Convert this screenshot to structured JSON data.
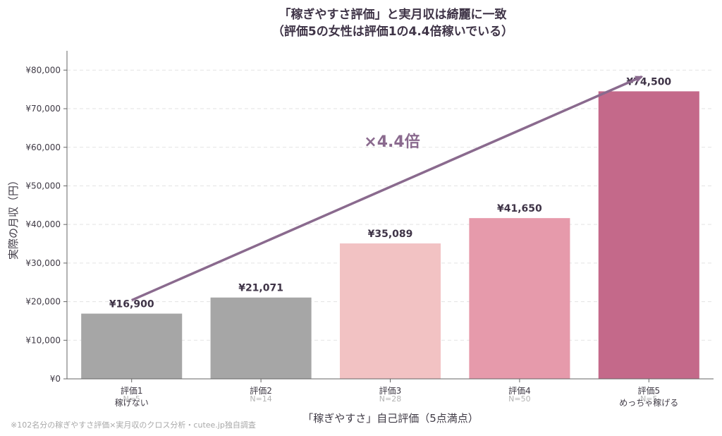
{
  "chart_data": {
    "type": "bar",
    "title_line1": "「稼ぎやすさ評価」と実月収は綺麗に一致",
    "title_line2": "（評価5の女性は評価1の4.4倍稼いでいる）",
    "xlabel": "「稼ぎやすさ」自己評価（5点満点）",
    "ylabel": "実際の月収（円）",
    "ylim": [
      0,
      85000
    ],
    "yticks": [
      0,
      10000,
      20000,
      30000,
      40000,
      50000,
      60000,
      70000,
      80000
    ],
    "ytick_labels": [
      "¥0",
      "¥10,000",
      "¥20,000",
      "¥30,000",
      "¥40,000",
      "¥50,000",
      "¥60,000",
      "¥70,000",
      "¥80,000"
    ],
    "grid": "horizontal dashed",
    "categories": [
      "評価1",
      "評価2",
      "評価3",
      "評価4",
      "評価5"
    ],
    "category_sublabels": [
      "稼げない",
      "",
      "",
      "",
      "めっちゃ稼げる"
    ],
    "n_labels": [
      "N=5",
      "N=14",
      "N=28",
      "N=50",
      "N=5"
    ],
    "values": [
      16900,
      21071,
      35089,
      41650,
      74500
    ],
    "value_labels": [
      "¥16,900",
      "¥21,071",
      "¥35,089",
      "¥41,650",
      "¥74,500"
    ],
    "bar_colors": [
      "#a6a6a6",
      "#a6a6a6",
      "#f2c2c3",
      "#e69aab",
      "#c4698a"
    ],
    "trend_arrow": {
      "from_index": 0,
      "to_index": 4,
      "color": "#8a6a8e"
    },
    "annotation": {
      "text": "×4.4倍",
      "color": "#8a6a8e"
    }
  },
  "footnote": "※102名分の稼ぎやすさ評価×実月収のクロス分析・cutee.jp独自調査"
}
